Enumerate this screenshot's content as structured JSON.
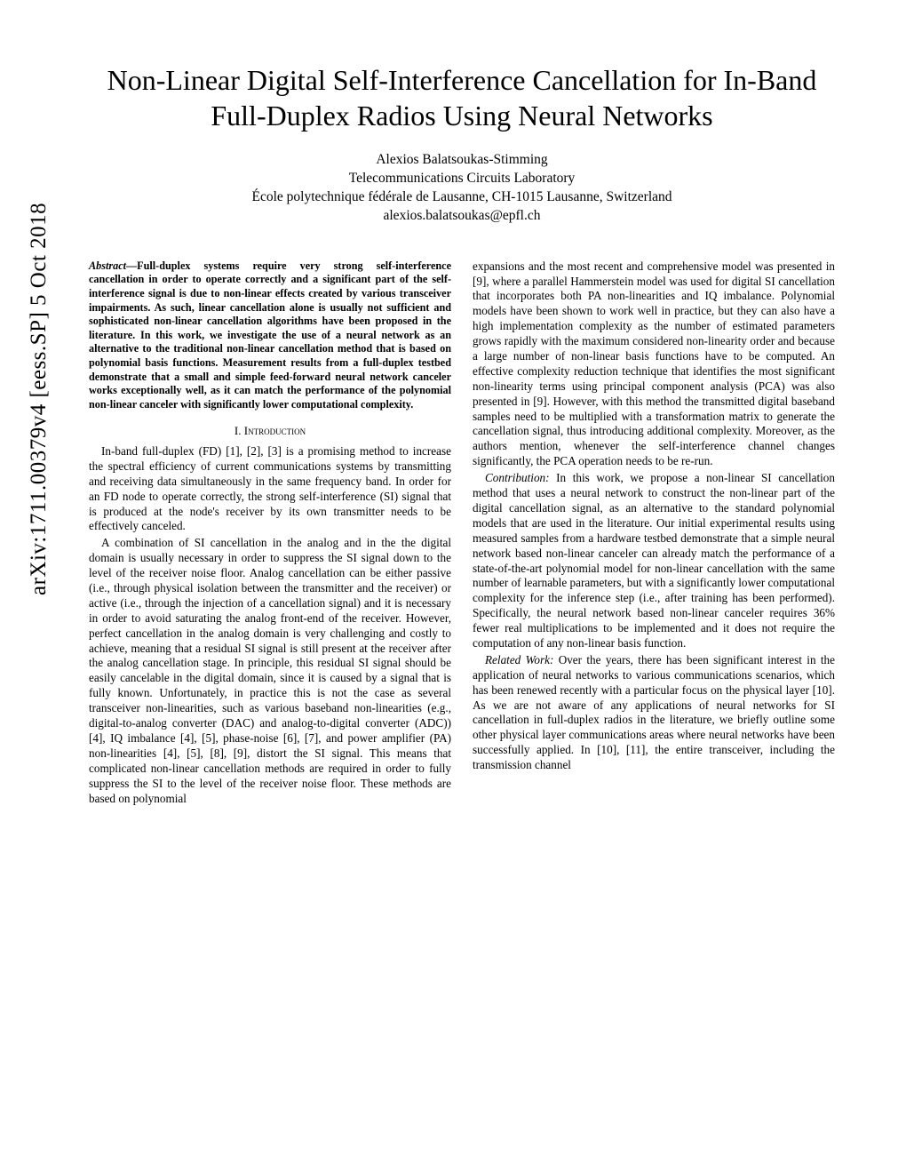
{
  "arxiv": "arXiv:1711.00379v4  [eess.SP]  5 Oct 2018",
  "title": "Non-Linear Digital Self-Interference Cancellation for In-Band Full-Duplex Radios Using Neural Networks",
  "author": {
    "name": "Alexios Balatsoukas-Stimming",
    "affiliation1": "Telecommunications Circuits Laboratory",
    "affiliation2": "École polytechnique fédérale de Lausanne, CH-1015 Lausanne, Switzerland",
    "email": "alexios.balatsoukas@epfl.ch"
  },
  "abstract_label": "Abstract",
  "abstract": "—Full-duplex systems require very strong self-interference cancellation in order to operate correctly and a significant part of the self-interference signal is due to non-linear effects created by various transceiver impairments. As such, linear cancellation alone is usually not sufficient and sophisticated non-linear cancellation algorithms have been proposed in the literature. In this work, we investigate the use of a neural network as an alternative to the traditional non-linear cancellation method that is based on polynomial basis functions. Measurement results from a full-duplex testbed demonstrate that a small and simple feed-forward neural network canceler works exceptionally well, as it can match the performance of the polynomial non-linear canceler with significantly lower computational complexity.",
  "section1_heading": "I.  Introduction",
  "left_p1": "In-band full-duplex (FD) [1], [2], [3] is a promising method to increase the spectral efficiency of current communications systems by transmitting and receiving data simultaneously in the same frequency band. In order for an FD node to operate correctly, the strong self-interference (SI) signal that is produced at the node's receiver by its own transmitter needs to be effectively canceled.",
  "left_p2": "A combination of SI cancellation in the analog and in the the digital domain is usually necessary in order to suppress the SI signal down to the level of the receiver noise floor. Analog cancellation can be either passive (i.e., through physical isolation between the transmitter and the receiver) or active (i.e., through the injection of a cancellation signal) and it is necessary in order to avoid saturating the analog front-end of the receiver. However, perfect cancellation in the analog domain is very challenging and costly to achieve, meaning that a residual SI signal is still present at the receiver after the analog cancellation stage. In principle, this residual SI signal should be easily cancelable in the digital domain, since it is caused by a signal that is fully known. Unfortunately, in practice this is not the case as several transceiver non-linearities, such as various baseband non-linearities (e.g., digital-to-analog converter (DAC) and analog-to-digital converter (ADC)) [4], IQ imbalance [4], [5], phase-noise [6], [7], and power amplifier (PA) non-linearities [4], [5], [8], [9], distort the SI signal. This means that complicated non-linear cancellation methods are required in order to fully suppress the SI to the level of the receiver noise floor. These methods are based on polynomial",
  "right_p1": "expansions and the most recent and comprehensive model was presented in [9], where a parallel Hammerstein model was used for digital SI cancellation that incorporates both PA non-linearities and IQ imbalance. Polynomial models have been shown to work well in practice, but they can also have a high implementation complexity as the number of estimated parameters grows rapidly with the maximum considered non-linearity order and because a large number of non-linear basis functions have to be computed. An effective complexity reduction technique that identifies the most significant non-linearity terms using principal component analysis (PCA) was also presented in [9]. However, with this method the transmitted digital baseband samples need to be multiplied with a transformation matrix to generate the cancellation signal, thus introducing additional complexity. Moreover, as the authors mention, whenever the self-interference channel changes significantly, the PCA operation needs to be re-run.",
  "right_contribution_label": "Contribution:",
  "right_p2": " In this work, we propose a non-linear SI cancellation method that uses a neural network to construct the non-linear part of the digital cancellation signal, as an alternative to the standard polynomial models that are used in the literature. Our initial experimental results using measured samples from a hardware testbed demonstrate that a simple neural network based non-linear canceler can already match the performance of a state-of-the-art polynomial model for non-linear cancellation with the same number of learnable parameters, but with a significantly lower computational complexity for the inference step (i.e., after training has been performed). Specifically, the neural network based non-linear canceler requires 36% fewer real multiplications to be implemented and it does not require the computation of any non-linear basis function.",
  "right_related_label": "Related Work:",
  "right_p3": " Over the years, there has been significant interest in the application of neural networks to various communications scenarios, which has been renewed recently with a particular focus on the physical layer [10]. As we are not aware of any applications of neural networks for SI cancellation in full-duplex radios in the literature, we briefly outline some other physical layer communications areas where neural networks have been successfully applied. In [10], [11], the entire transceiver, including the transmission channel"
}
